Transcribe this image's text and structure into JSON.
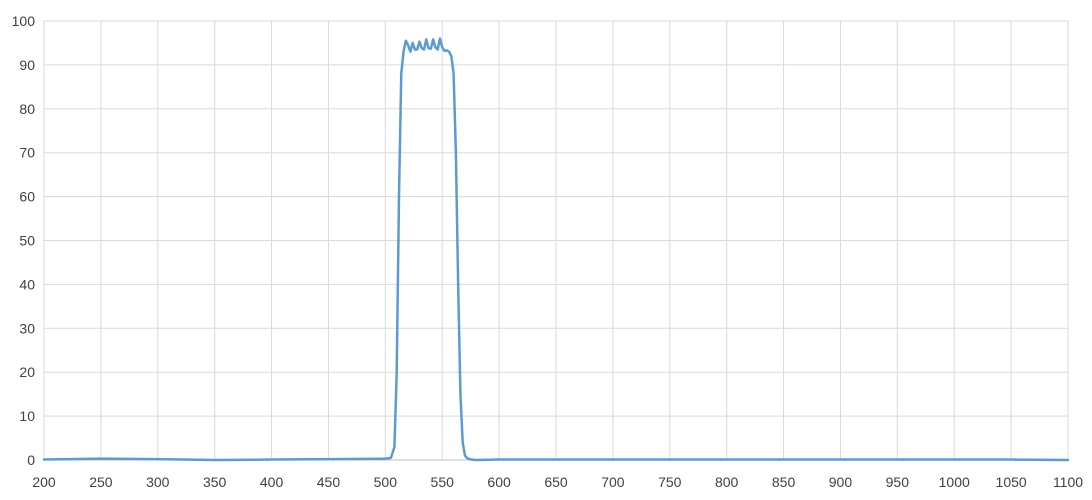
{
  "chart_data": {
    "type": "line",
    "title": "",
    "xlabel": "",
    "ylabel": "",
    "xlim": [
      200,
      1100
    ],
    "ylim": [
      0,
      100
    ],
    "x_ticks": [
      "200",
      "250",
      "300",
      "350",
      "400",
      "450",
      "500",
      "550",
      "600",
      "650",
      "700",
      "750",
      "800",
      "850",
      "900",
      "950",
      "1000",
      "1050",
      "1100"
    ],
    "y_ticks": [
      "0",
      "10",
      "20",
      "30",
      "40",
      "50",
      "60",
      "70",
      "80",
      "90",
      "100"
    ],
    "grid": true,
    "legend": "none",
    "series": [
      {
        "color": "#5b9bd5",
        "x": [
          200,
          250,
          300,
          350,
          400,
          450,
          500,
          505,
          508,
          510,
          512,
          514,
          516,
          518,
          520,
          522,
          524,
          526,
          528,
          530,
          532,
          534,
          536,
          538,
          540,
          542,
          544,
          546,
          548,
          550,
          552,
          554,
          556,
          558,
          560,
          562,
          564,
          566,
          568,
          570,
          572,
          574,
          576,
          580,
          600,
          650,
          700,
          800,
          900,
          1000,
          1050,
          1100
        ],
        "y": [
          0.1,
          0.3,
          0.2,
          0,
          0.1,
          0.2,
          0.3,
          0.5,
          3,
          20,
          60,
          88,
          93,
          95.5,
          94.5,
          93,
          95,
          93.5,
          93.5,
          95.3,
          93.8,
          93.5,
          95.8,
          93.8,
          93.7,
          95.8,
          94,
          93.5,
          96,
          94,
          93.2,
          93.3,
          93,
          92,
          88,
          70,
          40,
          15,
          4,
          1,
          0.4,
          0.2,
          0.1,
          0,
          0.1,
          0.1,
          0.1,
          0.1,
          0.1,
          0.1,
          0.1,
          0
        ]
      }
    ]
  }
}
